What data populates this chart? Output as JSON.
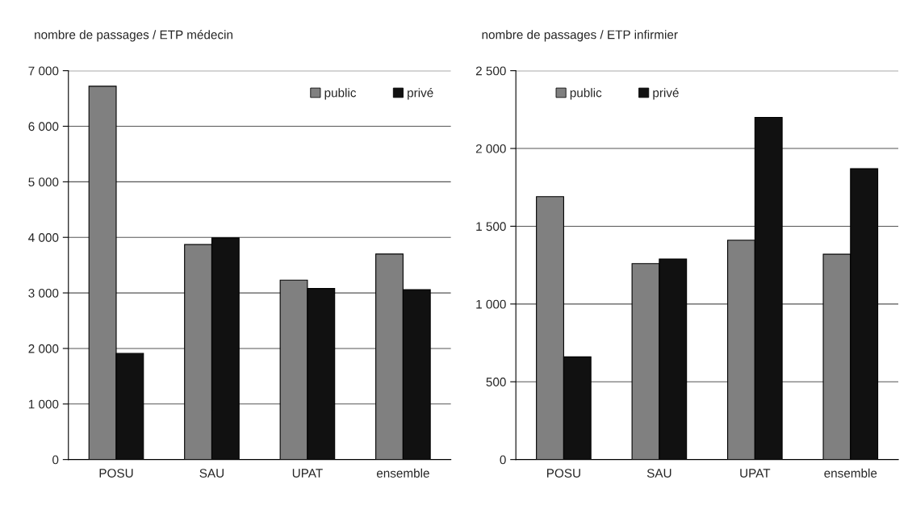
{
  "chart_data": [
    {
      "type": "bar",
      "title": "nombre de passages / ETP médecin",
      "categories": [
        "POSU",
        "SAU",
        "UPAT",
        "ensemble"
      ],
      "series": [
        {
          "name": "public",
          "color": "#808080",
          "values": [
            6720,
            3870,
            3230,
            3700
          ]
        },
        {
          "name": "privé",
          "color": "#111111",
          "values": [
            1910,
            3990,
            3080,
            3060
          ]
        }
      ],
      "ylim": [
        0,
        7000
      ],
      "yticks": [
        0,
        {
          "value": 1000,
          "label": "1 000"
        },
        {
          "value": 2000,
          "label": "2 000"
        },
        {
          "value": 3000,
          "label": "3 000"
        },
        {
          "value": 4000,
          "label": "4 000"
        },
        {
          "value": 5000,
          "label": "5 000"
        },
        {
          "value": 6000,
          "label": "6 000"
        },
        {
          "value": 7000,
          "label": "7 000"
        }
      ],
      "grid": "y",
      "legend": "top right"
    },
    {
      "type": "bar",
      "title": "nombre de passages / ETP infirmier",
      "categories": [
        "POSU",
        "SAU",
        "UPAT",
        "ensemble"
      ],
      "series": [
        {
          "name": "public",
          "color": "#808080",
          "values": [
            1690,
            1260,
            1410,
            1320
          ]
        },
        {
          "name": "privé",
          "color": "#111111",
          "values": [
            660,
            1290,
            2200,
            1870
          ]
        }
      ],
      "ylim": [
        0,
        2500
      ],
      "yticks": [
        0,
        500,
        {
          "value": 1000,
          "label": "1 000"
        },
        {
          "value": 1500,
          "label": "1 500"
        },
        {
          "value": 2000,
          "label": "2 000"
        },
        {
          "value": 2500,
          "label": "2 500"
        }
      ],
      "grid": "y",
      "legend": "top left"
    }
  ]
}
